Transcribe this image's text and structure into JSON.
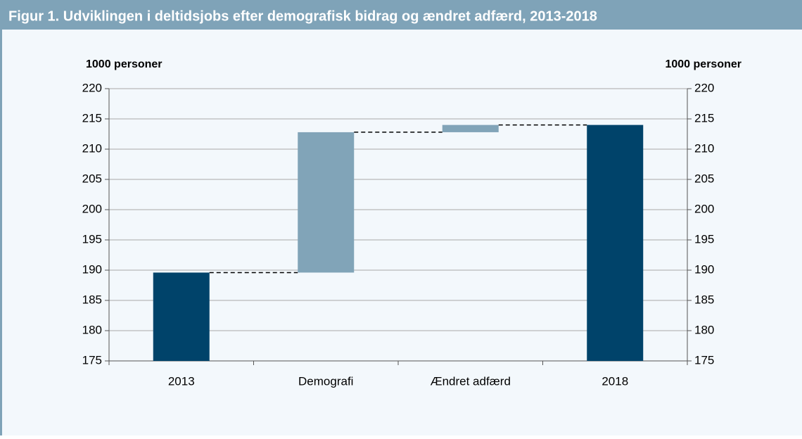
{
  "chart_data": {
    "type": "waterfall",
    "title": "Figur 1. Udviklingen i deltidsjobs efter demografisk bidrag og ændret adfærd, 2013-2018",
    "ylabel": "1000 personer",
    "y2label": "1000 personer",
    "categories": [
      "2013",
      "Demografi",
      "Ændret adfærd",
      "2018"
    ],
    "values": [
      189.6,
      23.2,
      1.2,
      214.0
    ],
    "is_total": [
      true,
      false,
      false,
      true
    ],
    "colors": [
      "#00436a",
      "#81a4b8",
      "#81a4b8",
      "#00436a"
    ],
    "ylim": [
      175,
      220
    ],
    "yticks": [
      175,
      180,
      185,
      190,
      195,
      200,
      205,
      210,
      215,
      220
    ],
    "y2lim": [
      175,
      220
    ],
    "y2ticks": [
      175,
      180,
      185,
      190,
      195,
      200,
      205,
      210,
      215,
      220
    ],
    "grid": true
  }
}
